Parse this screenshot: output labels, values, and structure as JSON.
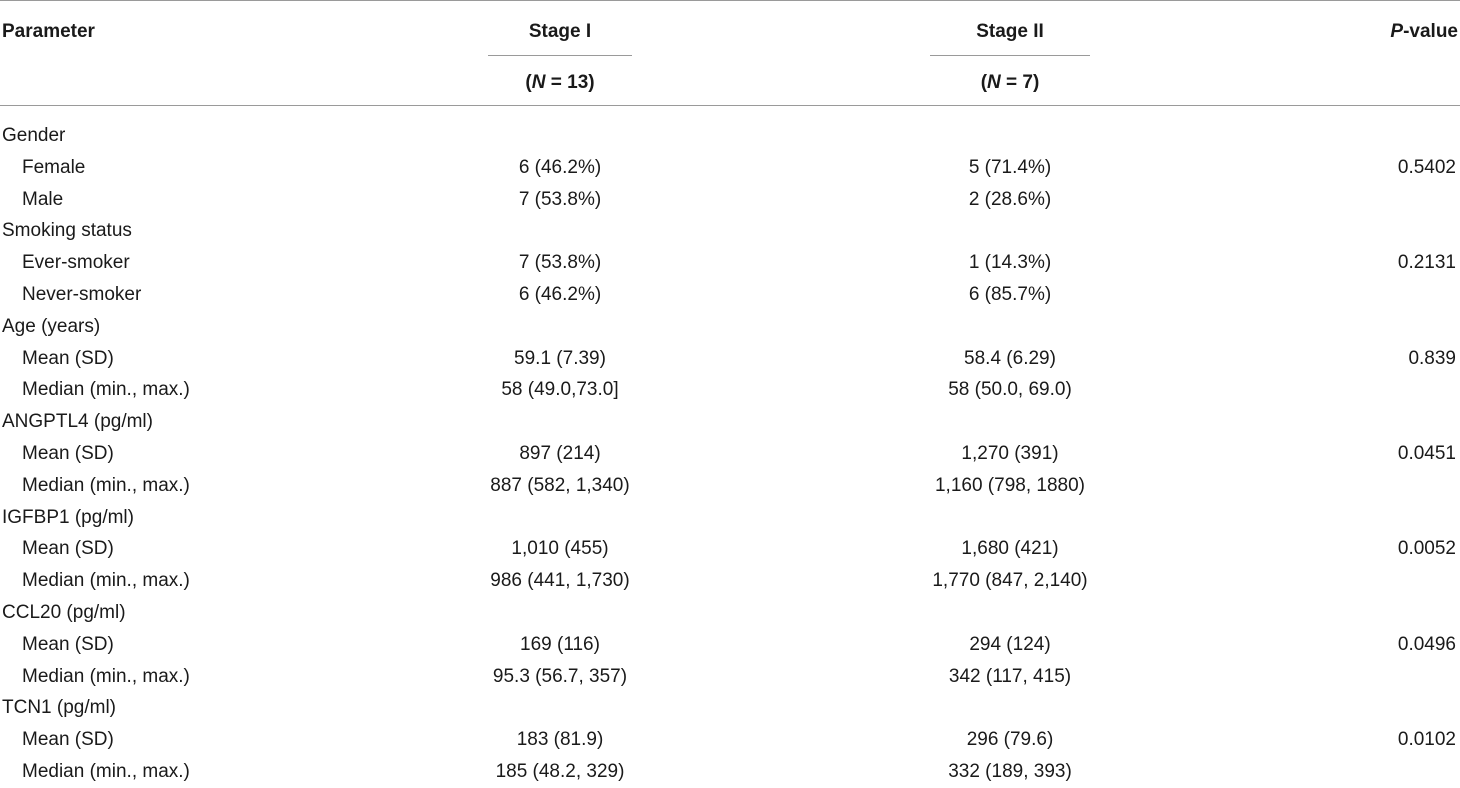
{
  "header": {
    "parameter": "Parameter",
    "stage1": "Stage I",
    "stage2": "Stage II",
    "pvalue_italic": "P",
    "pvalue_rest": "-value",
    "n1_open": "(",
    "n1_italic": "N",
    "n1_rest": " = 13)",
    "n2_open": "(",
    "n2_italic": "N",
    "n2_rest": " = 7)"
  },
  "rows": [
    {
      "type": "group",
      "label": "Gender"
    },
    {
      "type": "sub",
      "label": "Female",
      "stage1": "6 (46.2%)",
      "stage2": "5 (71.4%)",
      "pvalue": "0.5402"
    },
    {
      "type": "sub",
      "label": "Male",
      "stage1": "7 (53.8%)",
      "stage2": "2 (28.6%)",
      "pvalue": ""
    },
    {
      "type": "group",
      "label": "Smoking status"
    },
    {
      "type": "sub",
      "label": "Ever-smoker",
      "stage1": "7 (53.8%)",
      "stage2": "1 (14.3%)",
      "pvalue": "0.2131"
    },
    {
      "type": "sub",
      "label": "Never-smoker",
      "stage1": "6 (46.2%)",
      "stage2": "6 (85.7%)",
      "pvalue": ""
    },
    {
      "type": "group",
      "label": "Age (years)"
    },
    {
      "type": "sub",
      "label": "Mean (SD)",
      "stage1": "59.1 (7.39)",
      "stage2": "58.4 (6.29)",
      "pvalue": "0.839"
    },
    {
      "type": "sub",
      "label": "Median (min., max.)",
      "stage1": "58 (49.0,73.0]",
      "stage2": "58 (50.0, 69.0)",
      "pvalue": ""
    },
    {
      "type": "group",
      "label": "ANGPTL4 (pg/ml)"
    },
    {
      "type": "sub",
      "label": "Mean (SD)",
      "stage1": "897 (214)",
      "stage2": "1,270 (391)",
      "pvalue": "0.0451"
    },
    {
      "type": "sub",
      "label": "Median (min., max.)",
      "stage1": "887 (582, 1,340)",
      "stage2": "1,160 (798, 1880)",
      "pvalue": ""
    },
    {
      "type": "group",
      "label": "IGFBP1 (pg/ml)"
    },
    {
      "type": "sub",
      "label": "Mean (SD)",
      "stage1": "1,010 (455)",
      "stage2": "1,680 (421)",
      "pvalue": "0.0052"
    },
    {
      "type": "sub",
      "label": "Median (min., max.)",
      "stage1": "986 (441, 1,730)",
      "stage2": "1,770 (847, 2,140)",
      "pvalue": ""
    },
    {
      "type": "group",
      "label": "CCL20 (pg/ml)"
    },
    {
      "type": "sub",
      "label": "Mean (SD)",
      "stage1": "169 (116)",
      "stage2": "294 (124)",
      "pvalue": "0.0496"
    },
    {
      "type": "sub",
      "label": "Median (min., max.)",
      "stage1": "95.3 (56.7, 357)",
      "stage2": "342 (117, 415)",
      "pvalue": ""
    },
    {
      "type": "group",
      "label": "TCN1 (pg/ml)"
    },
    {
      "type": "sub",
      "label": "Mean (SD)",
      "stage1": "183 (81.9)",
      "stage2": "296 (79.6)",
      "pvalue": "0.0102"
    },
    {
      "type": "sub",
      "label": "Median (min., max.)",
      "stage1": "185 (48.2, 329)",
      "stage2": "332 (189, 393)",
      "pvalue": ""
    }
  ]
}
